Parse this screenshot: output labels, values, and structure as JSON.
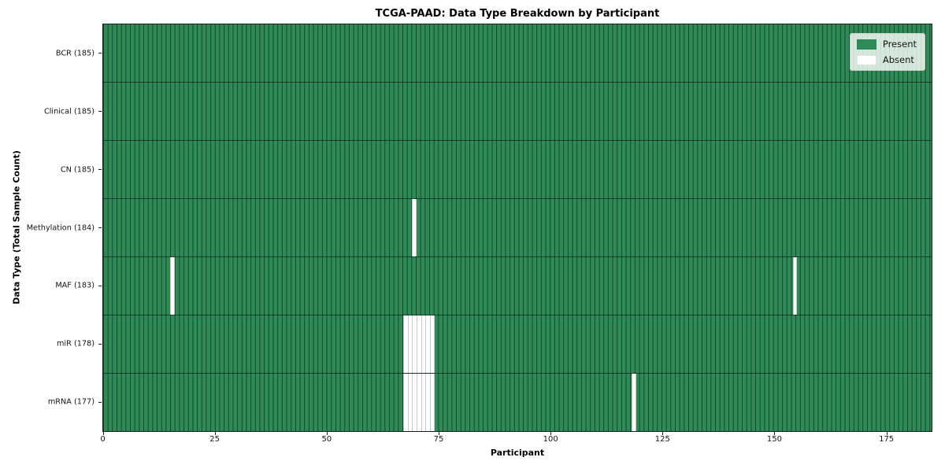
{
  "chart_data": {
    "type": "heatmap",
    "title": "TCGA-PAAD: Data Type Breakdown by Participant",
    "xlabel": "Participant",
    "ylabel": "Data Type (Total Sample Count)",
    "n_participants": 185,
    "xlim": [
      0,
      185
    ],
    "x_ticks": [
      0,
      25,
      50,
      75,
      100,
      125,
      150,
      175
    ],
    "grid": "off",
    "rows": [
      {
        "name": "bcr",
        "label": "BCR (185)",
        "total_samples": 185,
        "absent_participants": []
      },
      {
        "name": "clinical",
        "label": "Clinical (185)",
        "total_samples": 185,
        "absent_participants": []
      },
      {
        "name": "cn",
        "label": "CN (185)",
        "total_samples": 185,
        "absent_participants": []
      },
      {
        "name": "methylation",
        "label": "Methylation (184)",
        "total_samples": 184,
        "absent_participants": [
          69
        ]
      },
      {
        "name": "maf",
        "label": "MAF (183)",
        "total_samples": 183,
        "absent_participants": [
          15,
          154
        ]
      },
      {
        "name": "mir",
        "label": "miR (178)",
        "total_samples": 178,
        "absent_participants": [
          67,
          68,
          69,
          70,
          71,
          72,
          73
        ]
      },
      {
        "name": "mrna",
        "label": "mRNA (177)",
        "total_samples": 177,
        "absent_participants": [
          67,
          68,
          69,
          70,
          71,
          72,
          73,
          118
        ]
      }
    ],
    "legend": {
      "position": "upper right",
      "entries": [
        {
          "label": "Present",
          "color": "#2e8b57"
        },
        {
          "label": "Absent",
          "color": "#ffffff"
        }
      ]
    },
    "colors": {
      "present": "#2e8b57",
      "absent": "#ffffff",
      "cell_edge": "rgba(0,0,0,0.52)",
      "absent_cell_edge": "#c9c9c9",
      "spine": "#1c1c1c"
    }
  }
}
